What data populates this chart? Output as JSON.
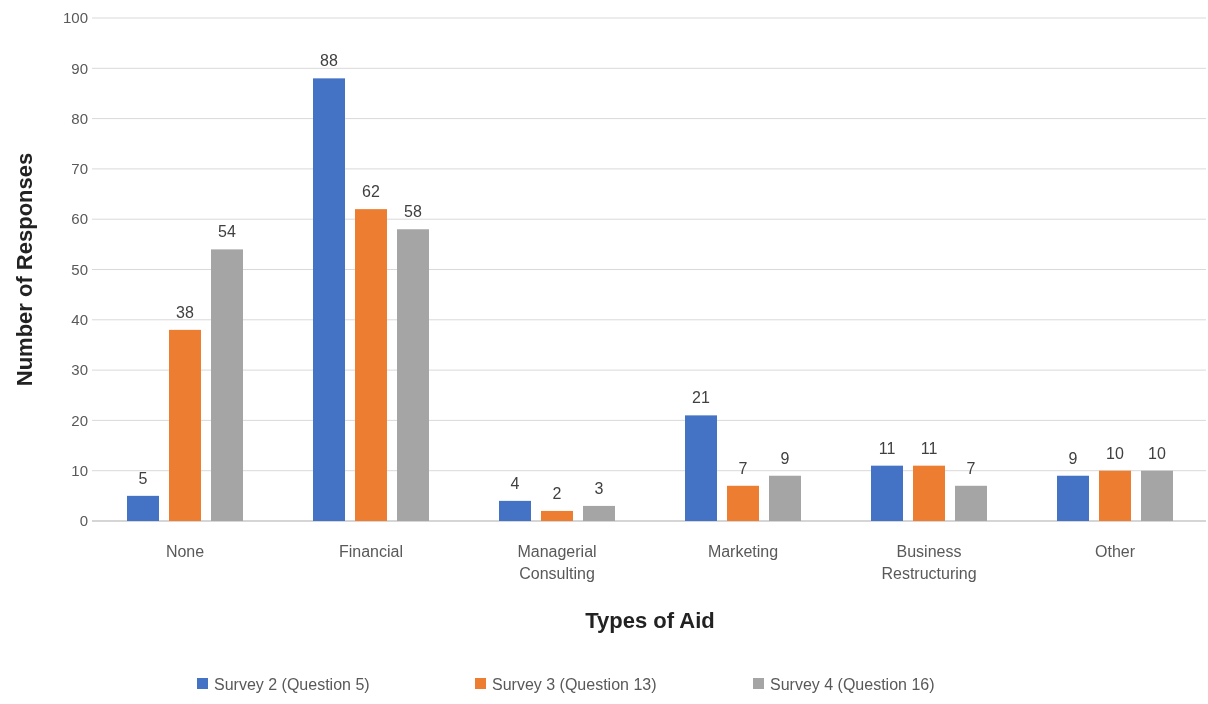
{
  "chart_data": {
    "type": "bar",
    "xlabel": "Types of Aid",
    "ylabel": "Number of Responses",
    "categories": [
      "None",
      "Financial",
      "Managerial Consulting",
      "Marketing",
      "Business Restructuring",
      "Other"
    ],
    "series": [
      {
        "name": "Survey 2 (Question 5)",
        "color": "#4472c4",
        "values": [
          5,
          88,
          4,
          21,
          11,
          9
        ]
      },
      {
        "name": "Survey 3 (Question 13)",
        "color": "#ed7d31",
        "values": [
          38,
          62,
          2,
          7,
          11,
          10
        ]
      },
      {
        "name": "Survey 4 (Question 16)",
        "color": "#a5a5a5",
        "values": [
          54,
          58,
          3,
          9,
          7,
          10
        ]
      }
    ],
    "ylim": [
      0,
      100
    ],
    "yticks": [
      0,
      10,
      20,
      30,
      40,
      50,
      60,
      70,
      80,
      90,
      100
    ],
    "grid": "y",
    "legend": "bottom",
    "data_labels": true
  }
}
